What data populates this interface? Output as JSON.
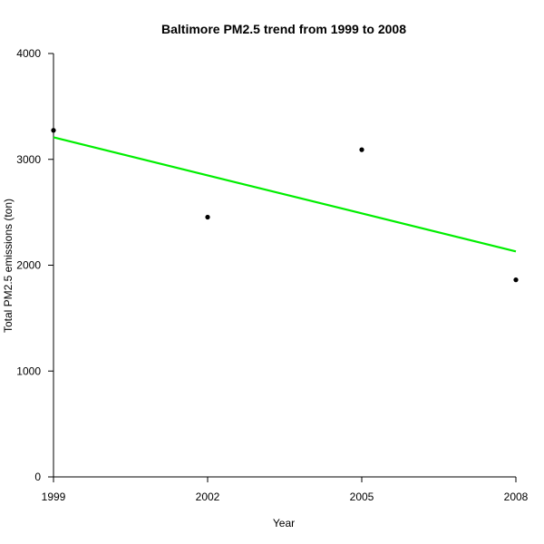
{
  "chart_data": {
    "type": "scatter",
    "title": "Baltimore PM2.5 trend from 1999 to 2008",
    "xlabel": "Year",
    "ylabel": "Total PM2.5 emissions (ton)",
    "xlim": [
      1999,
      2008
    ],
    "ylim": [
      0,
      4000
    ],
    "x_ticks": [
      1999,
      2002,
      2005,
      2008
    ],
    "y_ticks": [
      0,
      1000,
      2000,
      3000,
      4000
    ],
    "grid": false,
    "series": [
      {
        "type": "scatter",
        "x": [
          1999,
          2002,
          2005,
          2008
        ],
        "y": [
          3274,
          2454,
          3091,
          1862
        ],
        "color": "#000000"
      },
      {
        "type": "line",
        "x": [
          1999,
          2008
        ],
        "y": [
          3208,
          2130
        ],
        "color": "#00ee00"
      }
    ]
  }
}
